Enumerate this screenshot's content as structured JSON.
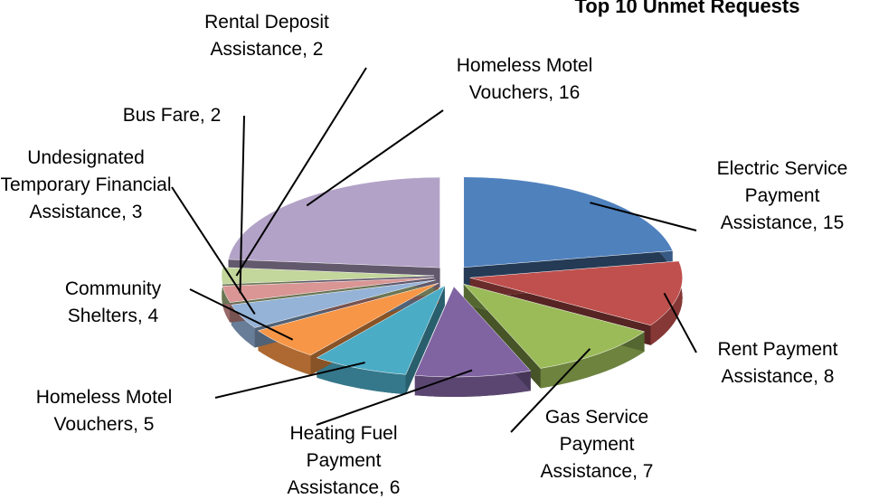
{
  "chart_data": {
    "type": "pie3d",
    "title": "Top 10 Unmet Requests",
    "values": [
      15,
      8,
      7,
      6,
      5,
      4,
      3,
      2,
      2,
      16
    ],
    "value_labels": [
      "Electric Service Payment Assistance, 15",
      "Rent Payment Assistance, 8",
      "Gas Service Payment Assistance, 7",
      "Heating Fuel Payment Assistance, 6",
      "Homeless Motel Vouchers, 5",
      "Community Shelters, 4",
      "Undesignated Temporary Financial Assistance, 3",
      "Bus Fare, 2",
      "Rental Deposit Assistance, 2",
      "Homeless Motel Vouchers, 16"
    ],
    "colors": [
      "#4f81bd",
      "#c0504d",
      "#9bbb59",
      "#8064a2",
      "#4bacc6",
      "#f79646",
      "#95b3d7",
      "#d99694",
      "#c3d69b",
      "#b3a2c7"
    ],
    "legend": false
  }
}
